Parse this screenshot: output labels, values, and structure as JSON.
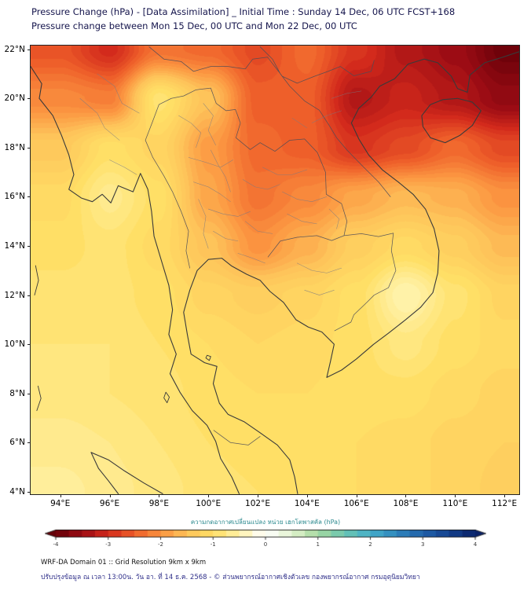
{
  "header": {
    "title_line1": "Pressure Change (hPa) - [Data Assimilation] _ Initial Time : Sunday 14 Dec, 06 UTC FCST+168",
    "title_line2": "Pressure change between Mon 15 Dec, 00 UTC and Mon 22 Dec, 00 UTC"
  },
  "map": {
    "x_ticks": [
      {
        "label": "94°E",
        "value": 94
      },
      {
        "label": "96°E",
        "value": 96
      },
      {
        "label": "98°E",
        "value": 98
      },
      {
        "label": "100°E",
        "value": 100
      },
      {
        "label": "102°E",
        "value": 102
      },
      {
        "label": "104°E",
        "value": 104
      },
      {
        "label": "106°E",
        "value": 106
      },
      {
        "label": "108°E",
        "value": 108
      },
      {
        "label": "110°E",
        "value": 110
      },
      {
        "label": "112°E",
        "value": 112
      }
    ],
    "y_ticks": [
      {
        "label": "22°N",
        "value": 22
      },
      {
        "label": "20°N",
        "value": 20
      },
      {
        "label": "18°N",
        "value": 18
      },
      {
        "label": "16°N",
        "value": 16
      },
      {
        "label": "14°N",
        "value": 14
      },
      {
        "label": "12°N",
        "value": 12
      },
      {
        "label": "10°N",
        "value": 10
      },
      {
        "label": "8°N",
        "value": 8
      },
      {
        "label": "6°N",
        "value": 6
      },
      {
        "label": "4°N",
        "value": 4
      }
    ]
  },
  "colorbar": {
    "label": "ความกดอากาศเปลี่ยนแปลง หน่วย เฮกโตพาสคัล (hPa)",
    "tick_labels": [
      "-4",
      "-3",
      "-2",
      "-1",
      "0",
      "1",
      "2",
      "3",
      "4"
    ]
  },
  "footer": {
    "line1": "WRF-DA Domain 01 :: Grid Resolution 9km x 9km",
    "line2": "ปรับปรุงข้อมูล ณ เวลา 13:00น. วัน อา. ที่ 14 ธ.ค. 2568 - © ส่วนพยากรณ์อากาศเชิงตัวเลข กองพยากรณ์อากาศ กรมอุตุนิยมวิทยา"
  },
  "chart_data": {
    "type": "heatmap",
    "title": "Pressure Change (hPa) - [Data Assimilation] _ Initial Time : Sunday 14 Dec, 06 UTC FCST+168",
    "subtitle": "Pressure change between Mon 15 Dec, 00 UTC and Mon 22 Dec, 00 UTC",
    "unit": "hPa",
    "xlabel": "Longitude (°E)",
    "ylabel": "Latitude (°N)",
    "xlim": [
      92.8,
      112.6
    ],
    "ylim": [
      3.9,
      22.15
    ],
    "x": [
      94,
      96,
      98,
      100,
      102,
      104,
      106,
      108,
      110,
      112
    ],
    "y": [
      22,
      20,
      18,
      16,
      14,
      12,
      10,
      8,
      6,
      4
    ],
    "values": [
      [
        -2.6,
        -3.0,
        -2.3,
        -2.4,
        -2.7,
        -2.4,
        -2.9,
        -3.3,
        -3.5,
        -3.9
      ],
      [
        -2.1,
        -2.2,
        -0.9,
        -1.5,
        -2.5,
        -2.5,
        -3.3,
        -3.1,
        -3.3,
        -3.6
      ],
      [
        -1.4,
        -1.0,
        -1.2,
        -1.9,
        -2.4,
        -2.5,
        -2.9,
        -2.7,
        -2.4,
        -2.7
      ],
      [
        -1.1,
        -0.7,
        -1.0,
        -1.8,
        -2.3,
        -2.1,
        -1.8,
        -1.6,
        -1.7,
        -2.0
      ],
      [
        -1.0,
        -0.9,
        -1.1,
        -1.5,
        -2.0,
        -1.7,
        -1.3,
        -1.1,
        -1.3,
        -1.6
      ],
      [
        -0.9,
        -0.9,
        -1.0,
        -1.2,
        -1.3,
        -1.2,
        -1.0,
        -0.45,
        -0.9,
        -1.2
      ],
      [
        -0.85,
        -0.85,
        -0.95,
        -1.05,
        -1.15,
        -1.1,
        -1.0,
        -0.8,
        -1.0,
        -1.1
      ],
      [
        -0.8,
        -0.85,
        -0.9,
        -1.0,
        -1.05,
        -1.05,
        -1.0,
        -1.0,
        -1.1,
        -1.2
      ],
      [
        -0.7,
        -0.75,
        -0.85,
        -0.95,
        -1.0,
        -1.05,
        -1.05,
        -1.1,
        -1.2,
        -1.25
      ],
      [
        -0.6,
        -0.7,
        -0.8,
        -0.9,
        -0.95,
        -1.0,
        -1.05,
        -1.1,
        -1.2,
        -1.3
      ]
    ],
    "colorbar_label": "ความกดอากาศเปลี่ยนแปลง หน่วย เฮกโตพาสคัล (hPa)",
    "colorbar_ticks": [
      -4,
      -3,
      -2,
      -1,
      0,
      1,
      2,
      3,
      4
    ],
    "colorbar_range": [
      -4,
      4
    ],
    "quantize_step": 0.1,
    "legend_position": "bottom",
    "grid": false,
    "colormap_stops": [
      [
        -4.0,
        "#640008"
      ],
      [
        -3.5,
        "#9c0c14"
      ],
      [
        -3.0,
        "#d32a1c"
      ],
      [
        -2.5,
        "#ee5f2a"
      ],
      [
        -2.0,
        "#fb9340"
      ],
      [
        -1.5,
        "#fec45a"
      ],
      [
        -1.0,
        "#ffdf66"
      ],
      [
        -0.5,
        "#fff2a8"
      ],
      [
        -0.2,
        "#fffbe0"
      ],
      [
        0.0,
        "#ffffff"
      ],
      [
        0.5,
        "#e4f4cf"
      ],
      [
        1.0,
        "#a6d9a0"
      ],
      [
        1.5,
        "#6cc6b1"
      ],
      [
        2.0,
        "#45aecb"
      ],
      [
        2.5,
        "#2f86bd"
      ],
      [
        3.0,
        "#2161aa"
      ],
      [
        3.5,
        "#14418e"
      ],
      [
        4.0,
        "#0a2268"
      ]
    ]
  }
}
